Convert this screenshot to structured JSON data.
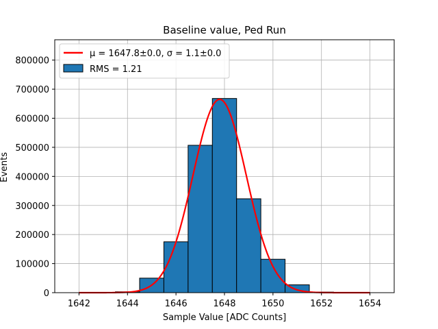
{
  "chart_data": {
    "type": "bar",
    "title": "Baseline value, Ped Run",
    "xlabel": "Sample Value [ADC Counts]",
    "ylabel": "Events",
    "xlim": [
      1641,
      1655
    ],
    "ylim": [
      0,
      870000
    ],
    "xticks": [
      1642,
      1644,
      1646,
      1648,
      1650,
      1652,
      1654
    ],
    "yticks": [
      0,
      100000,
      200000,
      300000,
      400000,
      500000,
      600000,
      700000,
      800000
    ],
    "grid": true,
    "legend_placement": "top-left",
    "histogram": {
      "name": "RMS = 1.21",
      "color": "#1f77b4",
      "bins": [
        {
          "x0": 1641.5,
          "x1": 1642.5,
          "value": 0
        },
        {
          "x0": 1642.5,
          "x1": 1643.5,
          "value": 0
        },
        {
          "x0": 1643.5,
          "x1": 1644.5,
          "value": 3000
        },
        {
          "x0": 1644.5,
          "x1": 1645.5,
          "value": 50000
        },
        {
          "x0": 1645.5,
          "x1": 1646.5,
          "value": 175000
        },
        {
          "x0": 1646.5,
          "x1": 1647.5,
          "value": 507000
        },
        {
          "x0": 1647.5,
          "x1": 1648.5,
          "value": 668000
        },
        {
          "x0": 1648.5,
          "x1": 1649.5,
          "value": 323000
        },
        {
          "x0": 1649.5,
          "x1": 1650.5,
          "value": 115000
        },
        {
          "x0": 1650.5,
          "x1": 1651.5,
          "value": 27000
        },
        {
          "x0": 1651.5,
          "x1": 1652.5,
          "value": 2000
        },
        {
          "x0": 1652.5,
          "x1": 1653.5,
          "value": 0
        }
      ]
    },
    "fit": {
      "name": "μ = 1647.8±0.0, σ = 1.1±0.0",
      "color": "#ff0000",
      "mu": 1647.8,
      "sigma": 1.1,
      "amplitude": 665000,
      "x_range": [
        1642,
        1654
      ]
    }
  }
}
